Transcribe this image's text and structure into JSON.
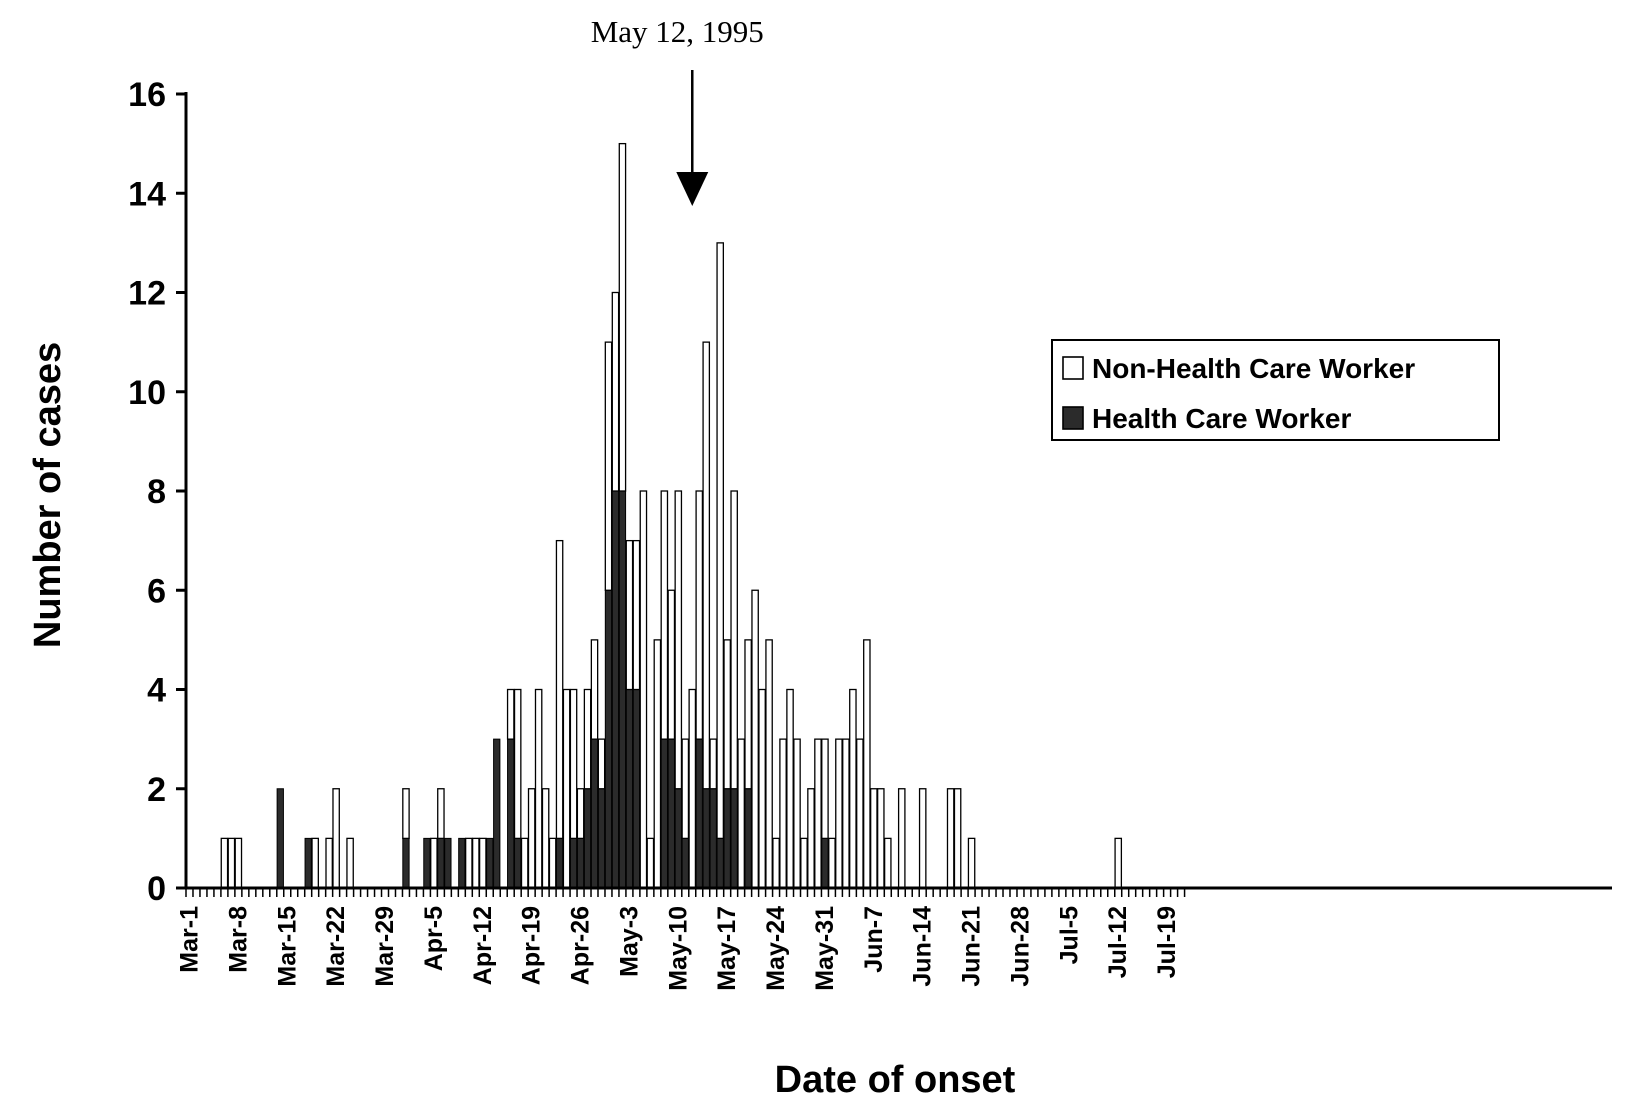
{
  "chart_data": {
    "type": "bar",
    "stacked": true,
    "xlabel": "Date of onset",
    "ylabel": "Number of cases",
    "ylim": [
      0,
      16
    ],
    "yticks": [
      0,
      2,
      4,
      6,
      8,
      10,
      12,
      14,
      16
    ],
    "x_start": "Mar-1",
    "x_end": "Jul-21",
    "xtick_labels": [
      "Mar-1",
      "Mar-8",
      "Mar-15",
      "Mar-22",
      "Mar-29",
      "Apr-5",
      "Apr-12",
      "Apr-19",
      "Apr-26",
      "May-3",
      "May-10",
      "May-17",
      "May-24",
      "May-31",
      "Jun-7",
      "Jun-14",
      "Jun-21",
      "Jun-28",
      "Jul-5",
      "Jul-12",
      "Jul-19"
    ],
    "annotation": {
      "text": "May 12, 1995",
      "date": "May-12"
    },
    "legend": {
      "position": "right",
      "entries": [
        "Non-Health Care Worker",
        "Health Care Worker"
      ]
    },
    "colors": {
      "non_hcw": "#ffffff",
      "hcw": "#2b2b2b",
      "stroke": "#000000"
    },
    "series": [
      {
        "name": "Health Care Worker",
        "points": [
          [
            "Mar-14",
            2
          ],
          [
            "Mar-18",
            1
          ],
          [
            "Apr-1",
            1
          ],
          [
            "Apr-4",
            1
          ],
          [
            "Apr-6",
            1
          ],
          [
            "Apr-7",
            1
          ],
          [
            "Apr-9",
            1
          ],
          [
            "Apr-13",
            1
          ],
          [
            "Apr-14",
            3
          ],
          [
            "Apr-16",
            3
          ],
          [
            "Apr-17",
            1
          ],
          [
            "Apr-23",
            1
          ],
          [
            "Apr-25",
            1
          ],
          [
            "Apr-26",
            1
          ],
          [
            "Apr-27",
            2
          ],
          [
            "Apr-28",
            3
          ],
          [
            "Apr-29",
            2
          ],
          [
            "Apr-30",
            6
          ],
          [
            "May-1",
            8
          ],
          [
            "May-2",
            8
          ],
          [
            "May-3",
            4
          ],
          [
            "May-4",
            4
          ],
          [
            "May-8",
            3
          ],
          [
            "May-9",
            3
          ],
          [
            "May-10",
            2
          ],
          [
            "May-11",
            1
          ],
          [
            "May-13",
            3
          ],
          [
            "May-14",
            2
          ],
          [
            "May-15",
            2
          ],
          [
            "May-16",
            1
          ],
          [
            "May-17",
            2
          ],
          [
            "May-18",
            2
          ],
          [
            "May-20",
            2
          ],
          [
            "May-31",
            1
          ]
        ]
      },
      {
        "name": "Non-Health Care Worker",
        "points": [
          [
            "Mar-6",
            1
          ],
          [
            "Mar-7",
            1
          ],
          [
            "Mar-8",
            1
          ],
          [
            "Mar-19",
            1
          ],
          [
            "Mar-21",
            1
          ],
          [
            "Mar-22",
            2
          ],
          [
            "Mar-24",
            1
          ],
          [
            "Apr-1",
            1
          ],
          [
            "Apr-5",
            1
          ],
          [
            "Apr-6",
            1
          ],
          [
            "Apr-10",
            1
          ],
          [
            "Apr-11",
            1
          ],
          [
            "Apr-12",
            1
          ],
          [
            "Apr-13",
            0
          ],
          [
            "Apr-16",
            1
          ],
          [
            "Apr-17",
            3
          ],
          [
            "Apr-18",
            1
          ],
          [
            "Apr-19",
            2
          ],
          [
            "Apr-20",
            4
          ],
          [
            "Apr-21",
            2
          ],
          [
            "Apr-22",
            1
          ],
          [
            "Apr-23",
            6
          ],
          [
            "Apr-24",
            4
          ],
          [
            "Apr-25",
            3
          ],
          [
            "Apr-26",
            1
          ],
          [
            "Apr-27",
            2
          ],
          [
            "Apr-28",
            2
          ],
          [
            "Apr-29",
            1
          ],
          [
            "Apr-30",
            5
          ],
          [
            "May-1",
            4
          ],
          [
            "May-2",
            7
          ],
          [
            "May-3",
            3
          ],
          [
            "May-4",
            3
          ],
          [
            "May-5",
            8
          ],
          [
            "May-6",
            1
          ],
          [
            "May-7",
            5
          ],
          [
            "May-8",
            5
          ],
          [
            "May-9",
            3
          ],
          [
            "May-10",
            6
          ],
          [
            "May-11",
            2
          ],
          [
            "May-12",
            4
          ],
          [
            "May-13",
            5
          ],
          [
            "May-14",
            9
          ],
          [
            "May-15",
            1
          ],
          [
            "May-16",
            12
          ],
          [
            "May-17",
            3
          ],
          [
            "May-18",
            6
          ],
          [
            "May-19",
            3
          ],
          [
            "May-20",
            3
          ],
          [
            "May-21",
            6
          ],
          [
            "May-22",
            4
          ],
          [
            "May-23",
            5
          ],
          [
            "May-24",
            1
          ],
          [
            "May-25",
            3
          ],
          [
            "May-26",
            4
          ],
          [
            "May-27",
            3
          ],
          [
            "May-28",
            1
          ],
          [
            "May-29",
            2
          ],
          [
            "May-30",
            3
          ],
          [
            "May-31",
            2
          ],
          [
            "Jun-1",
            1
          ],
          [
            "Jun-2",
            3
          ],
          [
            "Jun-3",
            3
          ],
          [
            "Jun-4",
            4
          ],
          [
            "Jun-5",
            3
          ],
          [
            "Jun-6",
            5
          ],
          [
            "Jun-7",
            2
          ],
          [
            "Jun-8",
            2
          ],
          [
            "Jun-9",
            1
          ],
          [
            "Jun-11",
            2
          ],
          [
            "Jun-14",
            2
          ],
          [
            "Jun-18",
            2
          ],
          [
            "Jun-19",
            2
          ],
          [
            "Jun-21",
            1
          ],
          [
            "Jul-12",
            1
          ]
        ]
      }
    ]
  }
}
